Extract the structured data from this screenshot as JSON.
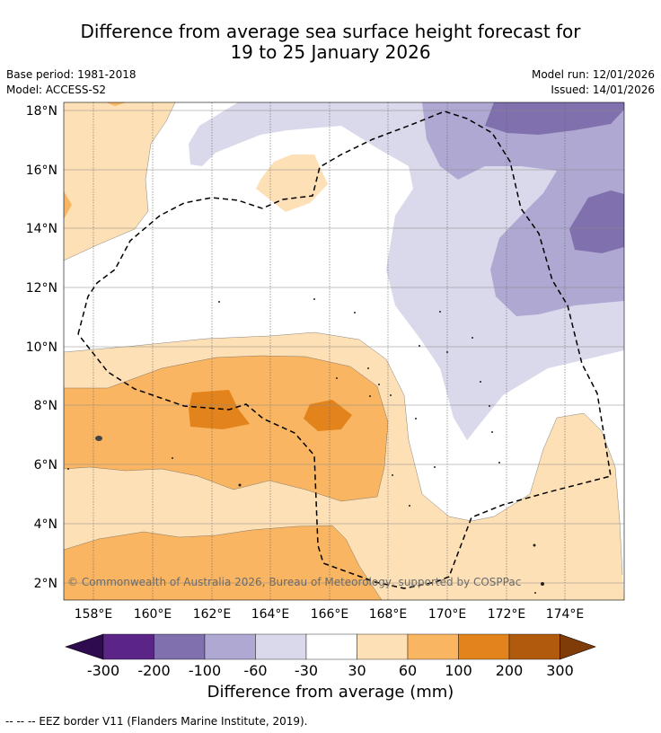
{
  "header": {
    "title_line1": "Difference from average sea surface height forecast for",
    "title_line2": "19 to 25 January 2026",
    "base_period": "Base period: 1981-2018",
    "model": "Model: ACCESS-S2",
    "model_run": "Model run: 12/01/2026",
    "issued": "Issued: 14/01/2026"
  },
  "map": {
    "lat_labels": [
      "18°N",
      "16°N",
      "14°N",
      "12°N",
      "10°N",
      "8°N",
      "6°N",
      "4°N",
      "2°N"
    ],
    "lon_labels": [
      "158°E",
      "160°E",
      "162°E",
      "164°E",
      "166°E",
      "168°E",
      "170°E",
      "172°E",
      "174°E"
    ],
    "copyright": "© Commonwealth of Australia 2026, Bureau of Meteorology, supported by COSPPac"
  },
  "colorbar": {
    "ticks": [
      "-300",
      "-200",
      "-100",
      "-60",
      "-30",
      "30",
      "60",
      "100",
      "200",
      "300"
    ],
    "colors": [
      "#5a2586",
      "#8170ae",
      "#aea8d2",
      "#d9d9eb",
      "#ffffff",
      "#fde0b6",
      "#f9b561",
      "#e2831b",
      "#b05a0d"
    ],
    "extend_low_color": "#2d0b4e",
    "extend_high_color": "#7f3b08",
    "title": "Difference from average (mm)"
  },
  "footnote": "--  --  -- EEZ border V11 (Flanders Marine Institute, 2019)."
}
